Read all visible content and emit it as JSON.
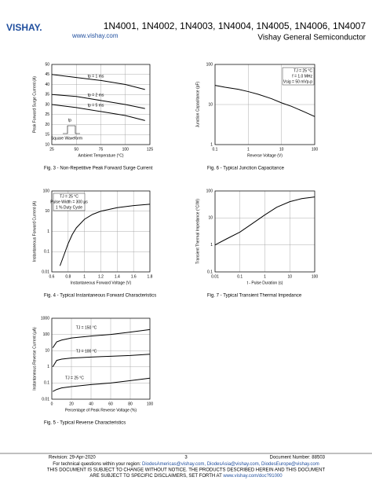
{
  "header": {
    "logo": "VISHAY.",
    "title": "1N4001, 1N4002, 1N4003, 1N4004, 1N4005, 1N4006, 1N4007",
    "website": "www.vishay.com",
    "company": "Vishay General Semiconductor"
  },
  "chart_data": [
    {
      "type": "line",
      "title": "Fig. 3 - Non-Repetitive Peak Forward Surge Current",
      "x_label": "Ambient Temperature (°C)",
      "y_label": "Peak Forward Surge Current (A)",
      "x": [
        25,
        50,
        75,
        100,
        120
      ],
      "series": [
        {
          "name": "tp = 1 ms",
          "color": "#000000",
          "values": [
            45,
            43.5,
            42,
            40,
            37.5
          ]
        },
        {
          "name": "tp = 2 ms",
          "color": "#000000",
          "values": [
            35,
            34,
            32,
            30,
            28
          ]
        },
        {
          "name": "tp = 5 ms",
          "color": "#000000",
          "values": [
            30,
            28.5,
            26.5,
            24.5,
            22
          ]
        }
      ],
      "xlim": [
        25,
        125
      ],
      "ylim": [
        10,
        50
      ],
      "xticks": [
        25,
        50,
        75,
        100,
        125
      ],
      "yticks": [
        10,
        15,
        20,
        25,
        30,
        35,
        40,
        45,
        50
      ],
      "xlog": false,
      "ylog": false,
      "grid": true,
      "annotations": [
        "tp",
        "Square Waveform"
      ]
    },
    {
      "type": "line",
      "title": "Fig. 6 - Typical Junction Capacitance",
      "x_label": "Reverse Voltage (V)",
      "y_label": "Junction Capacitance (pF)",
      "x": [
        0.1,
        0.2,
        0.5,
        1,
        2,
        5,
        10,
        20,
        50,
        100
      ],
      "series": [
        {
          "color": "#000000",
          "values": [
            30,
            27,
            24,
            21,
            18,
            14,
            11,
            9,
            6.5,
            5
          ]
        }
      ],
      "xlim": [
        0.1,
        100
      ],
      "ylim": [
        1,
        100
      ],
      "xticks": [
        0.1,
        1,
        10,
        100
      ],
      "yticks": [
        1,
        10,
        100
      ],
      "xlog": true,
      "ylog": true,
      "grid": true,
      "annotations": [
        "TJ = 25 °C",
        "f = 1.0 MHz",
        "Vsig = 50 mVp-p"
      ]
    },
    {
      "type": "line",
      "title": "Fig. 4 - Typical Instantaneous Forward Characteristics",
      "x_label": "Instantaneous Forward Voltage (V)",
      "y_label": "Instantaneous Forward Current (A)",
      "x": [
        0.7,
        0.75,
        0.8,
        0.85,
        0.9,
        1.0,
        1.1,
        1.2,
        1.4,
        1.6,
        1.8
      ],
      "series": [
        {
          "color": "#000000",
          "values": [
            0.02,
            0.07,
            0.25,
            0.7,
            1.5,
            4,
            7,
            10,
            15,
            19,
            22
          ]
        }
      ],
      "xlim": [
        0.6,
        1.8
      ],
      "ylim": [
        0.01,
        100
      ],
      "xticks": [
        0.6,
        0.8,
        1.0,
        1.2,
        1.4,
        1.6,
        1.8
      ],
      "yticks": [
        0.01,
        0.1,
        1,
        10,
        100
      ],
      "xlog": false,
      "ylog": true,
      "grid": true,
      "annotations": [
        "TJ = 25 °C",
        "Pulse Width = 300 μs",
        "1 % Duty Cycle"
      ]
    },
    {
      "type": "line",
      "title": "Fig. 7 - Typical Transient Thermal Impedance",
      "x_label": "t - Pulse Duration (s)",
      "y_label": "Transient Thermal Impedance (°C/W)",
      "x": [
        0.01,
        0.03,
        0.1,
        0.3,
        1,
        3,
        10,
        30,
        100
      ],
      "series": [
        {
          "color": "#000000",
          "values": [
            1,
            1.7,
            3,
            6,
            13,
            25,
            40,
            52,
            60
          ]
        }
      ],
      "xlim": [
        0.01,
        100
      ],
      "ylim": [
        0.1,
        100
      ],
      "xticks": [
        0.01,
        0.1,
        1,
        10,
        100
      ],
      "yticks": [
        0.1,
        1,
        10,
        100
      ],
      "xlog": true,
      "ylog": true,
      "grid": true,
      "annotations": []
    },
    {
      "type": "line",
      "title": "Fig. 5 - Typical Reverse Characteristics",
      "x_label": "Percentage of Peak Reverse Voltage (%)",
      "y_label": "Instantaneous Reverse Current (μA)",
      "x": [
        1,
        5,
        10,
        20,
        40,
        60,
        80,
        100
      ],
      "series": [
        {
          "name": "TJ = 150 °C",
          "color": "#000000",
          "values": [
            15,
            35,
            45,
            60,
            80,
            100,
            140,
            200
          ]
        },
        {
          "name": "TJ = 100 °C",
          "color": "#000000",
          "values": [
            1,
            2.5,
            3,
            3.5,
            4,
            4.5,
            5,
            6
          ]
        },
        {
          "name": "TJ = 25 °C",
          "color": "#000000",
          "values": [
            0.03,
            0.04,
            0.05,
            0.06,
            0.08,
            0.1,
            0.14,
            0.2
          ]
        }
      ],
      "xlim": [
        0,
        100
      ],
      "ylim": [
        0.01,
        1000
      ],
      "xticks": [
        0,
        20,
        40,
        60,
        80,
        100
      ],
      "yticks": [
        0.01,
        0.1,
        1,
        10,
        100,
        1000
      ],
      "xlog": false,
      "ylog": true,
      "grid": true,
      "annotations": []
    }
  ],
  "footer": {
    "revision": "Revision: 29-Apr-2020",
    "page": "3",
    "document_number": "Document Number: 88503",
    "questions": "For technical questions within your region:",
    "emails": [
      "DiodesAmericas@vishay.com,",
      "DiodesAsia@vishay.com,",
      "DiodesEurope@vishay.com"
    ],
    "disclaimer_1": "THIS DOCUMENT IS SUBJECT TO CHANGE WITHOUT NOTICE. THE PRODUCTS DESCRIBED HEREIN AND THIS DOCUMENT",
    "disclaimer_2": "ARE SUBJECT TO SPECIFIC DISCLAIMERS, SET FORTH AT",
    "disclaimer_link": "www.vishay.com/doc?91000"
  }
}
